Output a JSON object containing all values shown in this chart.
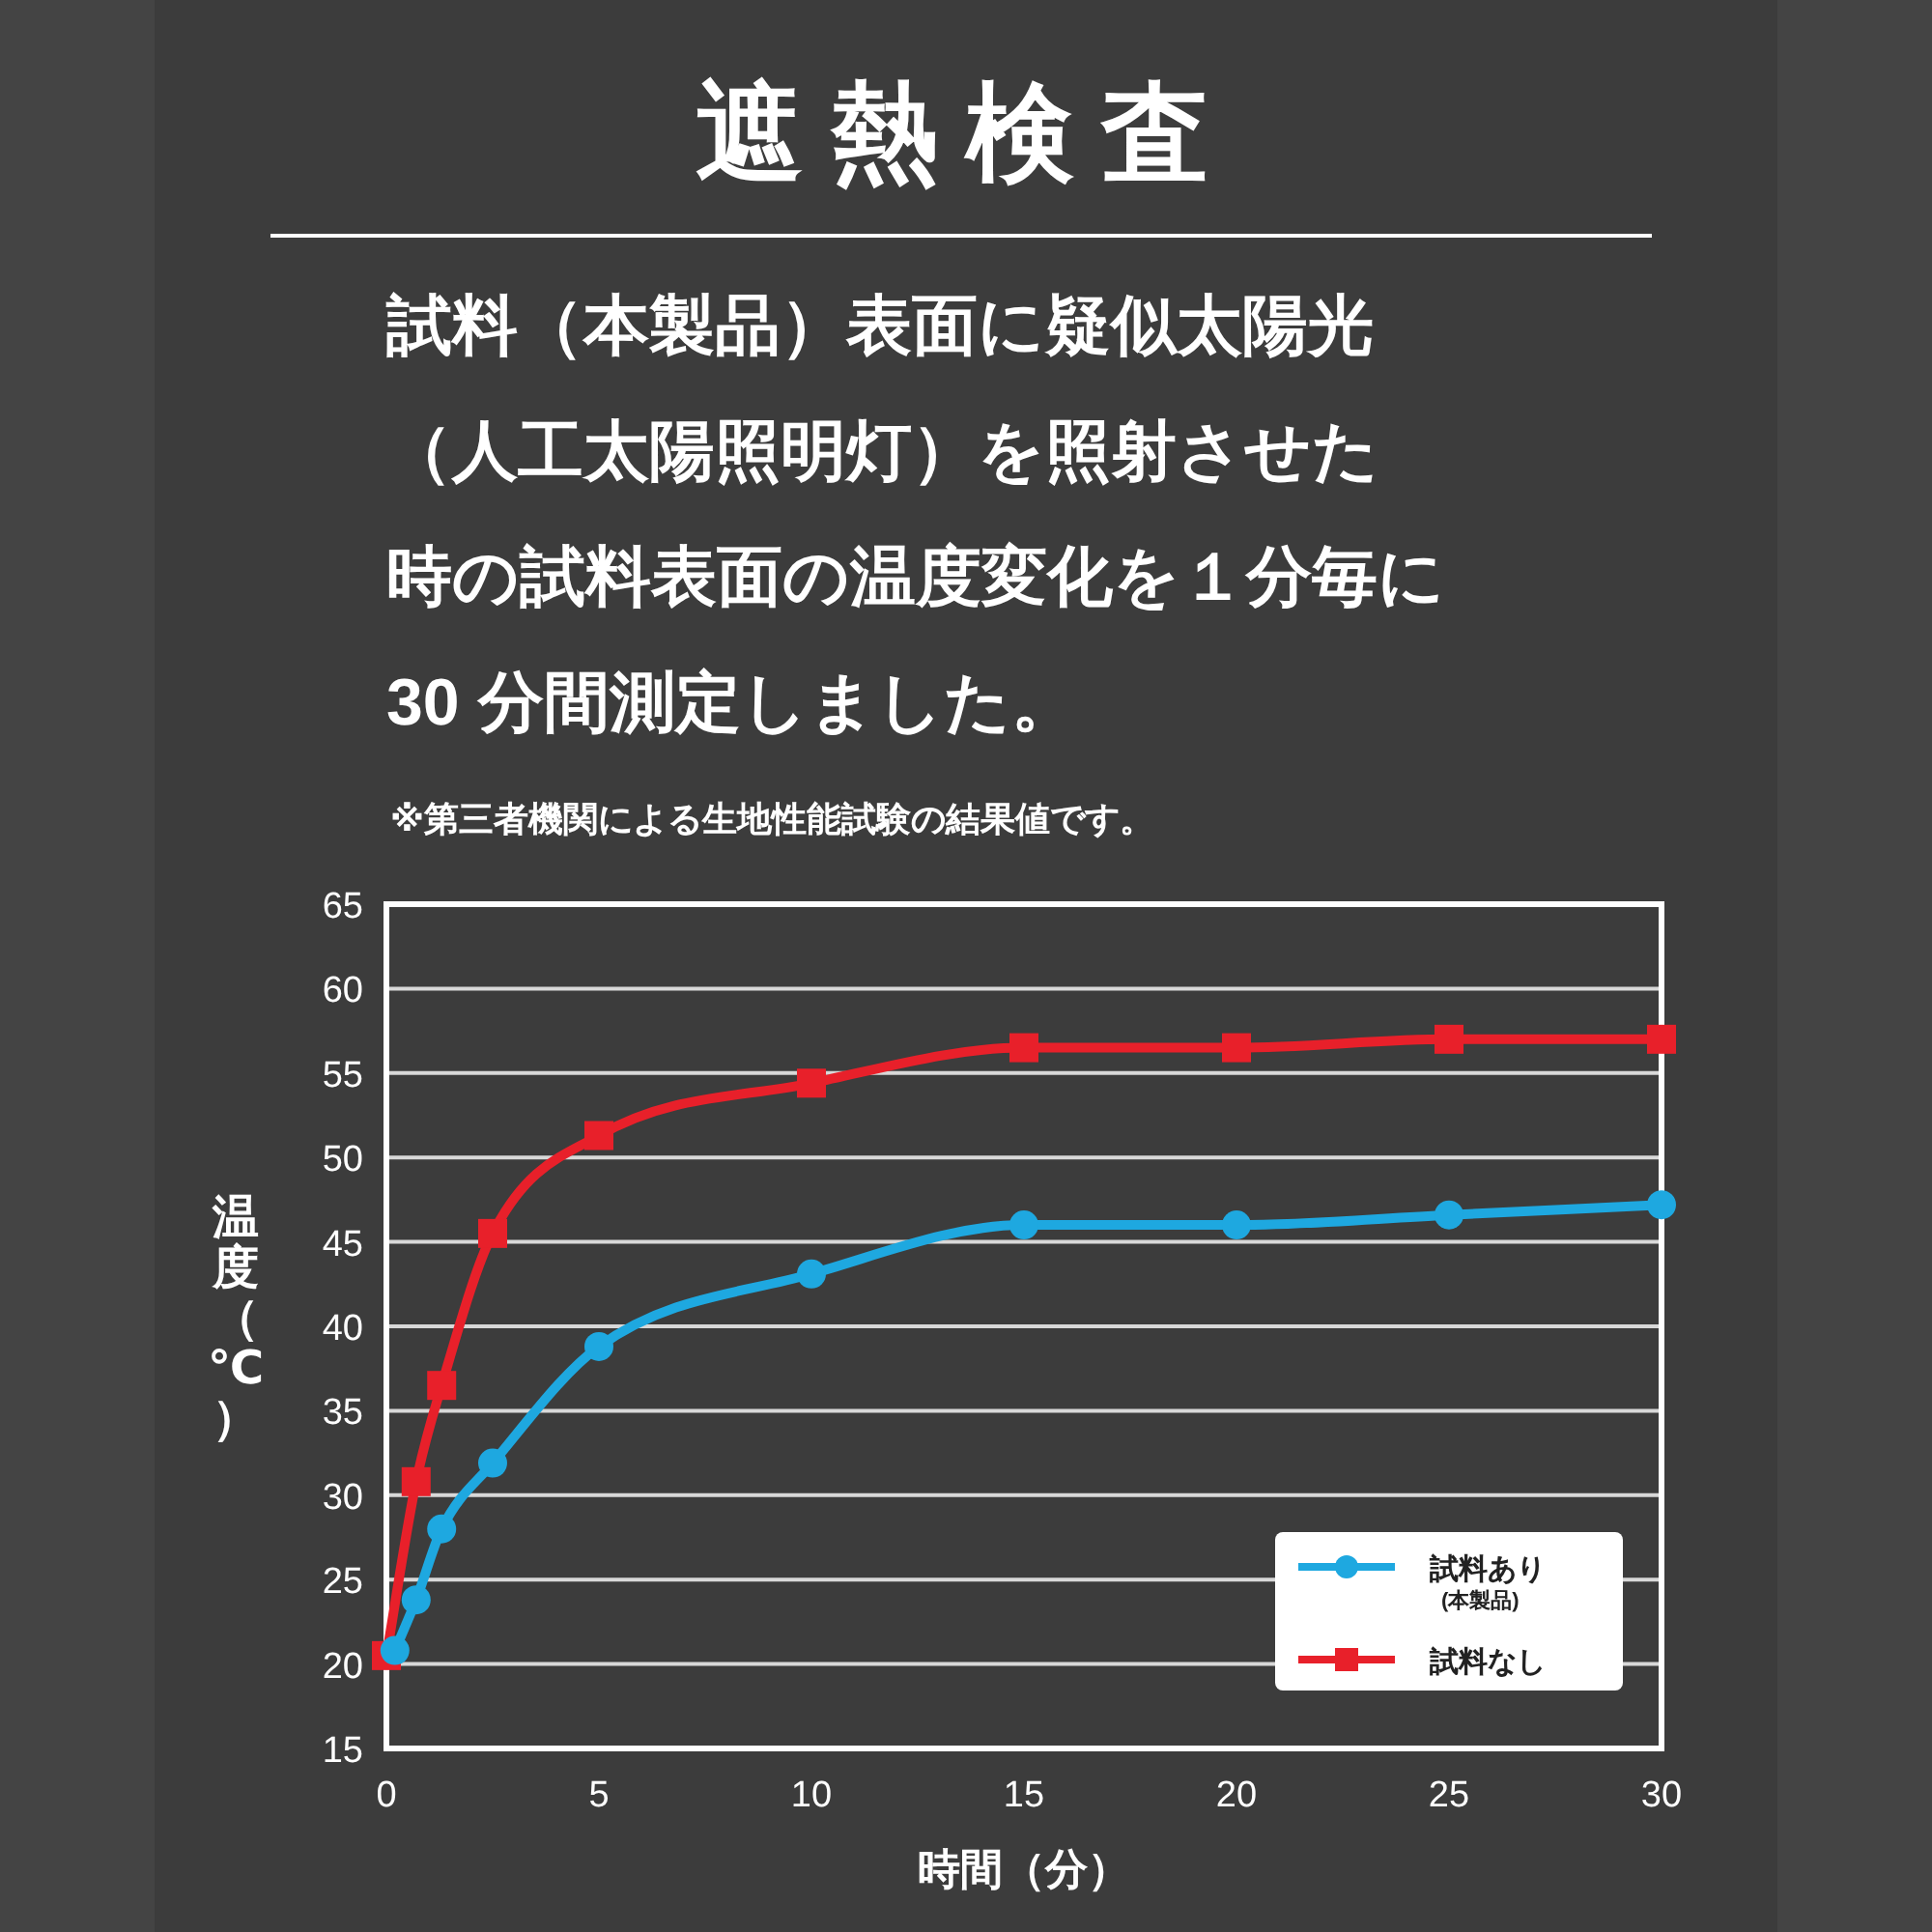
{
  "chart_data": {
    "type": "line",
    "title": "遮熱検査",
    "annotations": [
      "試料（本製品）表面に疑似太陽光",
      "（人工太陽照明灯）を照射させた",
      "時の試料表面の温度変化を１分毎に",
      "30 分間測定しました。",
      "※第三者機関による生地性能試験の結果値です。"
    ],
    "xlabel": "時間（分）",
    "ylabel": "温度（℃）",
    "xlim": [
      0,
      30
    ],
    "xticks": [
      0,
      5,
      10,
      15,
      20,
      25,
      30
    ],
    "ylim": [
      15,
      65
    ],
    "yticks": [
      15,
      20,
      25,
      30,
      35,
      40,
      45,
      50,
      55,
      60,
      65
    ],
    "grid": "y",
    "legend": "bottom right",
    "series": [
      {
        "name": "試料あり\n(本製品)",
        "color": "#1ea8e0",
        "marker": "circle",
        "x": [
          0.2,
          0.7,
          1.3,
          2.5,
          5,
          10,
          15,
          20,
          25,
          30
        ],
        "values": [
          20.8,
          23.8,
          28.0,
          31.9,
          38.8,
          43.1,
          46.0,
          46.0,
          46.6,
          47.2
        ]
      },
      {
        "name": "試料なし",
        "color": "#e8202a",
        "marker": "square",
        "x": [
          0,
          0.7,
          1.3,
          2.5,
          5,
          10,
          15,
          20,
          25,
          30
        ],
        "values": [
          20.5,
          30.8,
          36.5,
          45.5,
          51.3,
          54.4,
          56.5,
          56.5,
          57.0,
          57.0
        ]
      }
    ]
  }
}
